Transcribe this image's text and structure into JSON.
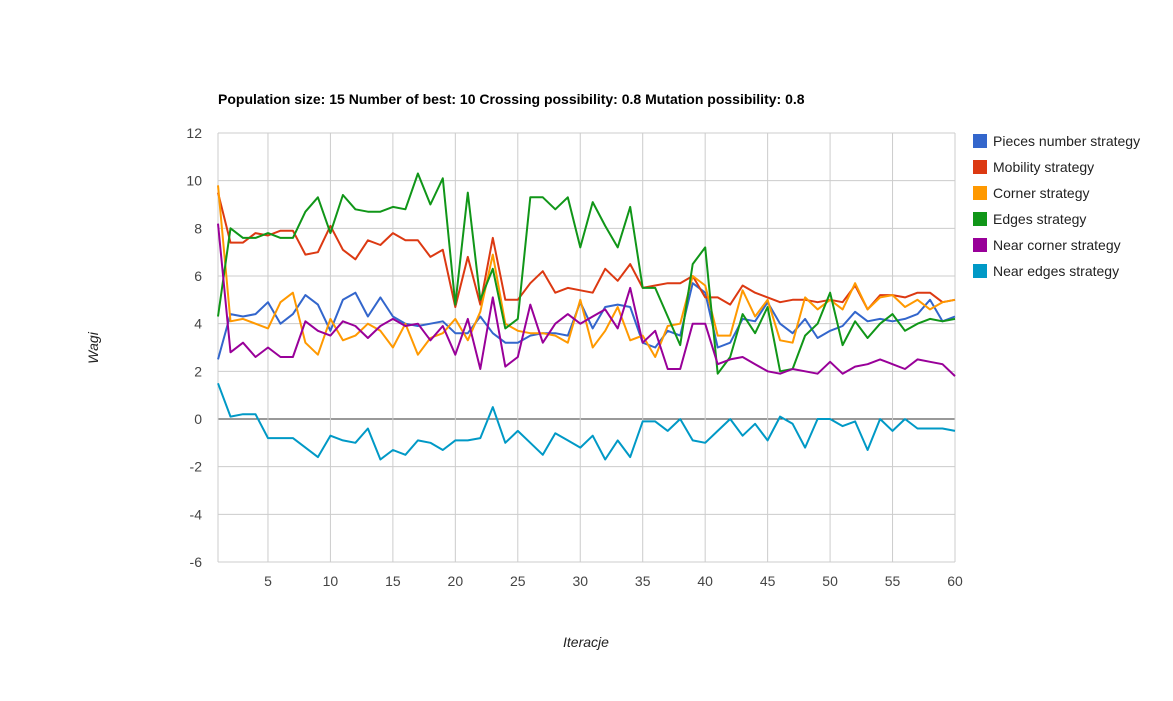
{
  "chart_data": {
    "type": "line",
    "title": "Population size: 15 Number of best: 10 Crossing possibility: 0.8 Mutation possibility: 0.8",
    "xlabel": "Iteracje",
    "ylabel": "Wagi",
    "xlim": [
      1,
      60
    ],
    "ylim": [
      -6,
      12
    ],
    "x_ticks": [
      5,
      10,
      15,
      20,
      25,
      30,
      35,
      40,
      45,
      50,
      55,
      60
    ],
    "y_ticks": [
      -6,
      -4,
      -2,
      0,
      2,
      4,
      6,
      8,
      10,
      12
    ],
    "grid": true,
    "legend_position": "right",
    "x": [
      1,
      2,
      3,
      4,
      5,
      6,
      7,
      8,
      9,
      10,
      11,
      12,
      13,
      14,
      15,
      16,
      17,
      18,
      19,
      20,
      21,
      22,
      23,
      24,
      25,
      26,
      27,
      28,
      29,
      30,
      31,
      32,
      33,
      34,
      35,
      36,
      37,
      38,
      39,
      40,
      41,
      42,
      43,
      44,
      45,
      46,
      47,
      48,
      49,
      50,
      51,
      52,
      53,
      54,
      55,
      56,
      57,
      58,
      59,
      60
    ],
    "series": [
      {
        "name": "Pieces number strategy",
        "color": "#3366cc",
        "values": [
          2.5,
          4.4,
          4.3,
          4.4,
          4.9,
          4.0,
          4.4,
          5.2,
          4.8,
          3.7,
          5.0,
          5.3,
          4.3,
          5.1,
          4.3,
          4.0,
          3.9,
          4.0,
          4.1,
          3.6,
          3.6,
          4.3,
          3.6,
          3.2,
          3.2,
          3.5,
          3.6,
          3.6,
          3.5,
          4.9,
          3.8,
          4.7,
          4.8,
          4.7,
          3.2,
          3.0,
          3.7,
          3.5,
          5.7,
          5.3,
          3.0,
          3.2,
          4.2,
          4.1,
          4.9,
          4.0,
          3.6,
          4.2,
          3.4,
          3.7,
          3.9,
          4.5,
          4.1,
          4.2,
          4.1,
          4.2,
          4.4,
          5.0,
          4.1,
          4.3
        ]
      },
      {
        "name": "Mobility strategy",
        "color": "#dc3912",
        "values": [
          9.5,
          7.4,
          7.4,
          7.8,
          7.7,
          7.9,
          7.9,
          6.9,
          7.0,
          8.1,
          7.1,
          6.7,
          7.5,
          7.3,
          7.8,
          7.5,
          7.5,
          6.8,
          7.1,
          4.7,
          6.8,
          4.8,
          7.6,
          5.0,
          5.0,
          5.7,
          6.2,
          5.3,
          5.5,
          5.4,
          5.3,
          6.3,
          5.8,
          6.5,
          5.5,
          5.6,
          5.7,
          5.7,
          6.0,
          5.1,
          5.1,
          4.8,
          5.6,
          5.3,
          5.1,
          4.9,
          5.0,
          5.0,
          4.9,
          5.0,
          4.9,
          5.6,
          4.6,
          5.2,
          5.2,
          5.1,
          5.3,
          5.3,
          4.9,
          5.0
        ]
      },
      {
        "name": "Corner strategy",
        "color": "#ff9900",
        "values": [
          9.8,
          4.1,
          4.2,
          4.0,
          3.8,
          4.9,
          5.3,
          3.2,
          2.7,
          4.2,
          3.3,
          3.5,
          4.0,
          3.7,
          3.0,
          4.0,
          2.7,
          3.4,
          3.6,
          4.2,
          3.3,
          4.5,
          6.9,
          4.0,
          3.7,
          3.6,
          3.6,
          3.5,
          3.2,
          5.0,
          3.0,
          3.7,
          4.7,
          3.3,
          3.5,
          2.6,
          3.9,
          4.0,
          6.0,
          5.6,
          3.5,
          3.5,
          5.4,
          4.3,
          5.0,
          3.3,
          3.2,
          5.1,
          4.6,
          5.0,
          4.6,
          5.7,
          4.6,
          5.1,
          5.2,
          4.7,
          5.0,
          4.6,
          4.9,
          5.0
        ]
      },
      {
        "name": "Edges strategy",
        "color": "#109618",
        "values": [
          4.3,
          8.0,
          7.6,
          7.6,
          7.8,
          7.6,
          7.6,
          8.7,
          9.3,
          7.8,
          9.4,
          8.8,
          8.7,
          8.7,
          8.9,
          8.8,
          10.3,
          9.0,
          10.1,
          4.8,
          9.5,
          5.0,
          6.3,
          3.8,
          4.2,
          9.3,
          9.3,
          8.8,
          9.3,
          7.2,
          9.1,
          8.1,
          7.2,
          8.9,
          5.5,
          5.5,
          4.3,
          3.1,
          6.5,
          7.2,
          1.9,
          2.6,
          4.4,
          3.6,
          4.7,
          2.0,
          2.1,
          3.5,
          4.0,
          5.3,
          3.1,
          4.1,
          3.4,
          4.0,
          4.4,
          3.7,
          4.0,
          4.2,
          4.1,
          4.2
        ]
      },
      {
        "name": "Near corner strategy",
        "color": "#990099",
        "values": [
          8.2,
          2.8,
          3.2,
          2.6,
          3.0,
          2.6,
          2.6,
          4.1,
          3.7,
          3.5,
          4.1,
          3.9,
          3.4,
          3.9,
          4.2,
          3.9,
          4.0,
          3.3,
          3.9,
          2.7,
          4.2,
          2.1,
          5.1,
          2.2,
          2.6,
          4.8,
          3.2,
          4.0,
          4.4,
          4.0,
          4.3,
          4.6,
          3.8,
          5.5,
          3.2,
          3.7,
          2.1,
          2.1,
          4.0,
          4.0,
          2.3,
          2.5,
          2.6,
          2.3,
          2.0,
          1.9,
          2.1,
          2.0,
          1.9,
          2.4,
          1.9,
          2.2,
          2.3,
          2.5,
          2.3,
          2.1,
          2.5,
          2.4,
          2.3,
          1.8
        ]
      },
      {
        "name": "Near edges strategy",
        "color": "#0099c6",
        "values": [
          1.5,
          0.1,
          0.2,
          0.2,
          -0.8,
          -0.8,
          -0.8,
          -1.2,
          -1.6,
          -0.7,
          -0.9,
          -1.0,
          -0.4,
          -1.7,
          -1.3,
          -1.5,
          -0.9,
          -1.0,
          -1.3,
          -0.9,
          -0.9,
          -0.8,
          0.5,
          -1.0,
          -0.5,
          -1.0,
          -1.5,
          -0.6,
          -0.9,
          -1.2,
          -0.7,
          -1.7,
          -0.9,
          -1.6,
          -0.1,
          -0.1,
          -0.5,
          0.0,
          -0.9,
          -1.0,
          -0.5,
          0.0,
          -0.7,
          -0.2,
          -0.9,
          0.1,
          -0.2,
          -1.2,
          0.0,
          0.0,
          -0.3,
          -0.1,
          -1.3,
          0.0,
          -0.5,
          0.0,
          -0.4,
          -0.4,
          -0.4,
          -0.5
        ]
      }
    ]
  }
}
